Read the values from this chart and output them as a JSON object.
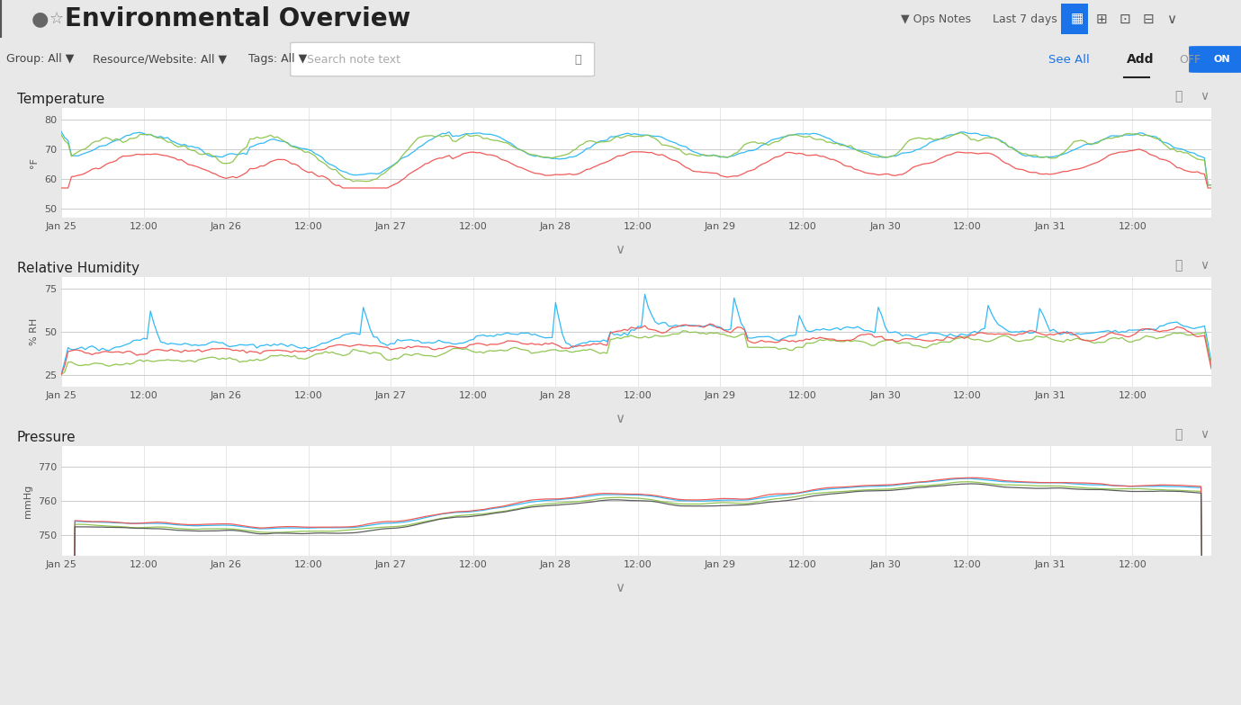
{
  "title": "Environmental Overview",
  "bg_color": "#e8e8e8",
  "panel_bg": "#ffffff",
  "header_bg": "#dcdcdc",
  "toolbar_bg": "#ebebeb",
  "panels": [
    {
      "title": "Temperature",
      "ylabel": "°F",
      "yticks": [
        50,
        60,
        70,
        80
      ],
      "ylim": [
        47,
        84
      ]
    },
    {
      "title": "Relative Humidity",
      "ylabel": "% RH",
      "yticks": [
        25,
        50,
        75
      ],
      "ylim": [
        18,
        82
      ]
    },
    {
      "title": "Pressure",
      "ylabel": "mmHg",
      "yticks": [
        750,
        760,
        770
      ],
      "ylim": [
        744,
        776
      ]
    }
  ],
  "x_tick_labels": [
    "Jan 25",
    "12:00",
    "Jan 26",
    "12:00",
    "Jan 27",
    "12:00",
    "Jan 28",
    "12:00",
    "Jan 29",
    "12:00",
    "Jan 30",
    "12:00",
    "Jan 31",
    "12:00"
  ],
  "n_points": 336,
  "colors_temp": [
    "#29b6f6",
    "#8bc34a",
    "#ef5350"
  ],
  "colors_hum": [
    "#29b6f6",
    "#8bc34a",
    "#ef5350"
  ],
  "colors_press": [
    "#29b6f6",
    "#8bc34a",
    "#ef5350",
    "#555555"
  ]
}
